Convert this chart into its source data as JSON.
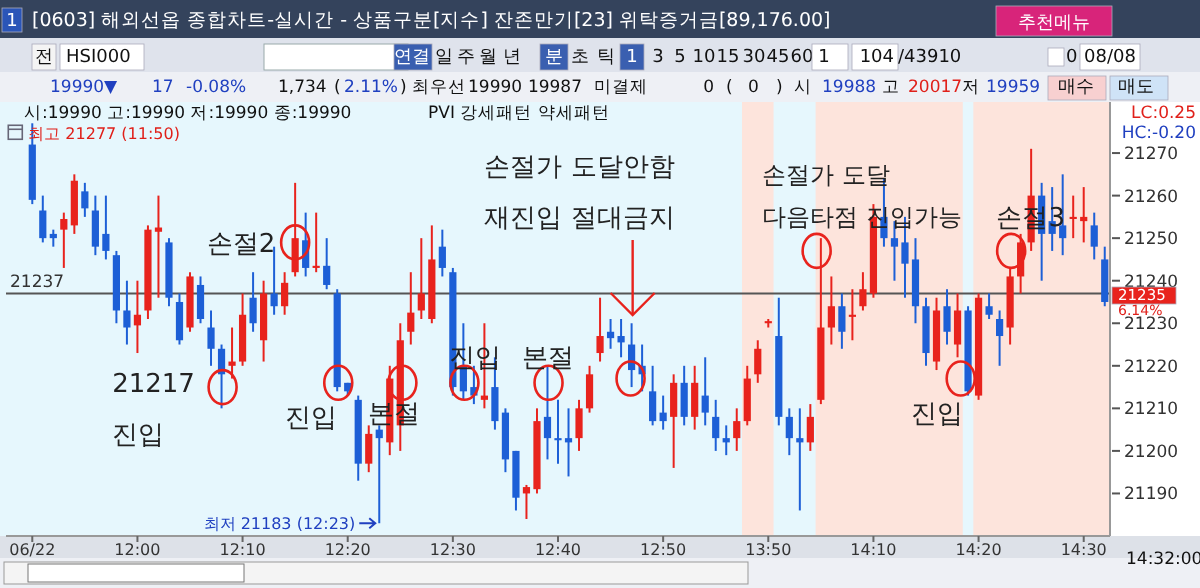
{
  "chart_data": {
    "type": "candlestick",
    "title": "[0603] 해외선옵 종합차트-실시간 - 상품구분[지수] 잔존만기[23] 위탁증거금[89,176.00]",
    "categories": [
      "06/22",
      null,
      null,
      null,
      null,
      null,
      null,
      null,
      null,
      null,
      "12:00",
      null,
      null,
      null,
      null,
      null,
      null,
      null,
      null,
      null,
      "12:10",
      null,
      null,
      null,
      null,
      null,
      null,
      null,
      null,
      null,
      "12:20",
      null,
      null,
      null,
      null,
      null,
      null,
      null,
      null,
      null,
      "12:30",
      null,
      null,
      null,
      null,
      null,
      null,
      null,
      null,
      null,
      "12:40",
      null,
      null,
      null,
      null,
      null,
      null,
      null,
      null,
      null,
      "12:50",
      null,
      null,
      null,
      null,
      null,
      null,
      null,
      null,
      null,
      "13:50",
      null,
      null,
      null,
      null,
      null,
      null,
      null,
      null,
      null,
      "14:10",
      null,
      null,
      null,
      null,
      null,
      null,
      null,
      null,
      null,
      "14:20",
      null,
      null,
      null,
      null,
      null,
      null,
      null,
      null,
      null,
      "14:30",
      null,
      null
    ],
    "ohlc": [
      [
        21272,
        21277,
        21258,
        21259
      ],
      [
        21256.5,
        21260,
        21249,
        21250
      ],
      [
        21251,
        21252,
        21248,
        21250
      ],
      [
        21252,
        21256,
        21243,
        21254.5
      ],
      [
        21253,
        21265,
        21251,
        21263.5
      ],
      [
        21261,
        21263,
        21255,
        21257
      ],
      [
        21256.5,
        21260,
        21246,
        21248
      ],
      [
        21251,
        21260,
        21245,
        21247
      ],
      [
        21246,
        21247,
        21230,
        21233
      ],
      [
        21233,
        21240,
        21225,
        21229
      ],
      [
        21229.5,
        21240,
        21223,
        21232
      ],
      [
        21233,
        21253,
        21231,
        21252
      ],
      [
        21251.5,
        21260,
        21236,
        21252.5
      ],
      [
        21249,
        21250,
        21234,
        21236
      ],
      [
        21235,
        21237,
        21225,
        21226
      ],
      [
        21229,
        21242,
        21228,
        21241
      ],
      [
        21239,
        21241,
        21230,
        21231
      ],
      [
        21229,
        21233,
        21220,
        21224
      ],
      [
        21224,
        21225,
        21210,
        21218
      ],
      [
        21220,
        21229,
        21217,
        21221
      ],
      [
        21221,
        21237,
        21220,
        21232
      ],
      [
        21236,
        21242,
        21228,
        21230
      ],
      [
        21226,
        21240,
        21221,
        21237
      ],
      [
        21237,
        21248,
        21232,
        21234
      ],
      [
        21234,
        21242,
        21232,
        21239.5
      ],
      [
        21242,
        21263,
        21241,
        21250
      ],
      [
        21249.5,
        21256,
        21241,
        21243
      ],
      [
        21243,
        21256,
        21242,
        21243.5
      ],
      [
        21243.5,
        21250,
        21238,
        21239
      ],
      [
        21237,
        21238,
        21214,
        21215
      ],
      [
        21216,
        21216,
        21213,
        21214
      ],
      [
        21212,
        21213,
        21193,
        21197
      ],
      [
        21197,
        21206,
        21195,
        21204
      ],
      [
        21205,
        21206,
        21183,
        21203
      ],
      [
        21202,
        21220,
        21199,
        21217
      ],
      [
        21206,
        21230,
        21200,
        21226
      ],
      [
        21228,
        21242,
        21225,
        21232.5
      ],
      [
        21233,
        21250,
        21231,
        21237
      ],
      [
        21231,
        21253,
        21230,
        21245
      ],
      [
        21248,
        21252,
        21241,
        21243
      ],
      [
        21242,
        21243,
        21213,
        21215
      ],
      [
        21220,
        21230,
        21212,
        21214
      ],
      [
        21215,
        21220,
        21211,
        21213
      ],
      [
        21212,
        21230,
        21210,
        21213
      ],
      [
        21215,
        21222,
        21205,
        21207
      ],
      [
        21209,
        21210,
        21195,
        21198
      ],
      [
        21200,
        21200,
        21186,
        21189
      ],
      [
        21190,
        21192,
        21184,
        21191.5
      ],
      [
        21191,
        21210,
        21190,
        21207
      ],
      [
        21208,
        21220,
        21198,
        21203
      ],
      [
        21203,
        21212,
        21197,
        21202.5
      ],
      [
        21203,
        21210,
        21194,
        21202
      ],
      [
        21203,
        21212,
        21200,
        21210
      ],
      [
        21210,
        21220,
        21209,
        21218
      ],
      [
        21223,
        21236,
        21221,
        21227
      ],
      [
        21228,
        21231,
        21224,
        21226.5
      ],
      [
        21227,
        21231,
        21222,
        21225.5
      ],
      [
        21225,
        21230,
        21215,
        21219
      ],
      [
        21220,
        21225,
        21214,
        21218
      ],
      [
        21214,
        21220,
        21206,
        21207
      ],
      [
        21209,
        21213,
        21205,
        21207
      ],
      [
        21208,
        21218,
        21196,
        21216
      ],
      [
        21216,
        21220,
        21206,
        21208
      ],
      [
        21208,
        21220,
        21205,
        21216
      ],
      [
        21213,
        21222,
        21206,
        21209
      ],
      [
        21208,
        21212,
        21200,
        21203
      ],
      [
        21203,
        21206,
        21199,
        21202
      ],
      [
        21203,
        21210,
        21200,
        21207
      ],
      [
        21207,
        21220,
        21206,
        21217
      ],
      [
        21218,
        21226,
        21216,
        21224
      ],
      [
        21230,
        21231,
        21229,
        21230.5
      ],
      [
        21227,
        21236,
        21206,
        21208
      ],
      [
        21208,
        21210,
        21199,
        21203
      ],
      [
        21203,
        21210,
        21186,
        21202
      ],
      [
        21202,
        21211,
        21200,
        21208
      ],
      [
        21212,
        21250,
        21211,
        21229
      ],
      [
        21229,
        21241,
        21225,
        21234
      ],
      [
        21234,
        21237,
        21224,
        21228
      ],
      [
        21231.5,
        21238,
        21226,
        21232
      ],
      [
        21234,
        21242,
        21233,
        21238
      ],
      [
        21237,
        21258,
        21236,
        21255
      ],
      [
        21255,
        21264,
        21248,
        21250
      ],
      [
        21250,
        21254,
        21240,
        21248
      ],
      [
        21249,
        21255,
        21236,
        21244
      ],
      [
        21245,
        21250,
        21230,
        21234
      ],
      [
        21234,
        21236,
        21220,
        21223
      ],
      [
        21221,
        21236,
        21219,
        21233
      ],
      [
        21234,
        21238,
        21225,
        21228
      ],
      [
        21225,
        21237,
        21222,
        21233
      ],
      [
        21233,
        21234,
        21213,
        21214
      ],
      [
        21213,
        21237,
        21212,
        21236
      ],
      [
        21234,
        21237,
        21231,
        21232
      ],
      [
        21231,
        21233,
        21220,
        21227
      ],
      [
        21229,
        21243,
        21225,
        21241
      ],
      [
        21241,
        21251,
        21237,
        21249
      ],
      [
        21249,
        21271,
        21247,
        21260
      ],
      [
        21260,
        21263,
        21240,
        21251
      ],
      [
        21254,
        21262,
        21247,
        21251
      ],
      [
        21253,
        21265,
        21246,
        21250
      ],
      [
        21254.5,
        21260,
        21250,
        21255
      ],
      [
        21254,
        21262,
        21249,
        21255
      ],
      [
        21253,
        21256,
        21245,
        21248
      ],
      [
        21245,
        21248,
        21234,
        21235
      ]
    ],
    "colors": [
      "#1d5fd6",
      "#1d5fd6",
      "#1d5fd6",
      "#e8231d",
      "#e8231d",
      "#1d5fd6",
      "#1d5fd6",
      "#1d5fd6",
      "#1d5fd6",
      "#1d5fd6",
      "#e8231d",
      "#e8231d",
      "#e8231d",
      "#1d5fd6",
      "#1d5fd6",
      "#e8231d",
      "#1d5fd6",
      "#1d5fd6",
      "#1d5fd6",
      "#e8231d",
      "#e8231d",
      "#1d5fd6",
      "#e8231d",
      "#1d5fd6",
      "#e8231d",
      "#e8231d",
      "#1d5fd6",
      "#e8231d",
      "#1d5fd6",
      "#1d5fd6",
      "#1d5fd6",
      "#1d5fd6",
      "#e8231d",
      "#1d5fd6",
      "#e8231d",
      "#e8231d",
      "#e8231d",
      "#e8231d",
      "#e8231d",
      "#1d5fd6",
      "#1d5fd6",
      "#1d5fd6",
      "#1d5fd6",
      "#e8231d",
      "#1d5fd6",
      "#1d5fd6",
      "#1d5fd6",
      "#e8231d",
      "#e8231d",
      "#1d5fd6",
      "#1d5fd6",
      "#1d5fd6",
      "#e8231d",
      "#e8231d",
      "#e8231d",
      "#1d5fd6",
      "#1d5fd6",
      "#1d5fd6",
      "#1d5fd6",
      "#1d5fd6",
      "#1d5fd6",
      "#e8231d",
      "#1d5fd6",
      "#e8231d",
      "#1d5fd6",
      "#1d5fd6",
      "#1d5fd6",
      "#e8231d",
      "#e8231d",
      "#e8231d",
      "#e8231d",
      "#1d5fd6",
      "#1d5fd6",
      "#1d5fd6",
      "#e8231d",
      "#e8231d",
      "#e8231d",
      "#1d5fd6",
      "#e8231d",
      "#e8231d",
      "#e8231d",
      "#1d5fd6",
      "#1d5fd6",
      "#1d5fd6",
      "#1d5fd6",
      "#1d5fd6",
      "#e8231d",
      "#1d5fd6",
      "#e8231d",
      "#1d5fd6",
      "#e8231d",
      "#1d5fd6",
      "#1d5fd6",
      "#e8231d",
      "#e8231d",
      "#e8231d",
      "#1d5fd6",
      "#1d5fd6",
      "#1d5fd6",
      "#e8231d",
      "#e8231d",
      "#1d5fd6",
      "#1d5fd6"
    ],
    "ylim": [
      21180,
      21282
    ],
    "yticks": [
      21190,
      21200,
      21210,
      21220,
      21230,
      21240,
      21250,
      21260,
      21270
    ],
    "ref_lines": [
      {
        "axis": "y",
        "value": 21237,
        "label": "21237",
        "color": "#555555"
      }
    ],
    "annotations": [
      "1",
      "추천메뉴",
      "전",
      "HSI000",
      "연결",
      "일",
      "주",
      "월",
      "년",
      "분",
      "초",
      "틱",
      "1",
      "3",
      "5",
      "10",
      "15",
      "30",
      "45",
      "60",
      "1",
      "104",
      "/43910",
      "0",
      "08/08",
      "19990▼",
      "17",
      "-0.08%",
      "1,734",
      "(",
      "2.11%",
      ")",
      "최우선",
      "19990",
      "19987",
      "미결제",
      "0",
      "(",
      "0",
      ")",
      "시",
      "19988",
      "고",
      "20017",
      "저",
      "19959",
      "매수",
      "매도",
      "시:19990 고:19990 저:19990 종:19990",
      "PVI 강세패턴  약세패턴",
      "LC:0.25",
      "HC:-0.20",
      "21235",
      "6.14%",
      "14:32:00",
      "최고 21277 (11:50)",
      "최저 21183 (12:23)",
      "21217",
      "진입",
      "손절2",
      "진입",
      "본절",
      "진입",
      "본절",
      "손절가 도달안함",
      "재진입 절대금지",
      "손절가 도달",
      "다음타점 진입가능",
      "손절3",
      "진입"
    ],
    "grid": false
  }
}
